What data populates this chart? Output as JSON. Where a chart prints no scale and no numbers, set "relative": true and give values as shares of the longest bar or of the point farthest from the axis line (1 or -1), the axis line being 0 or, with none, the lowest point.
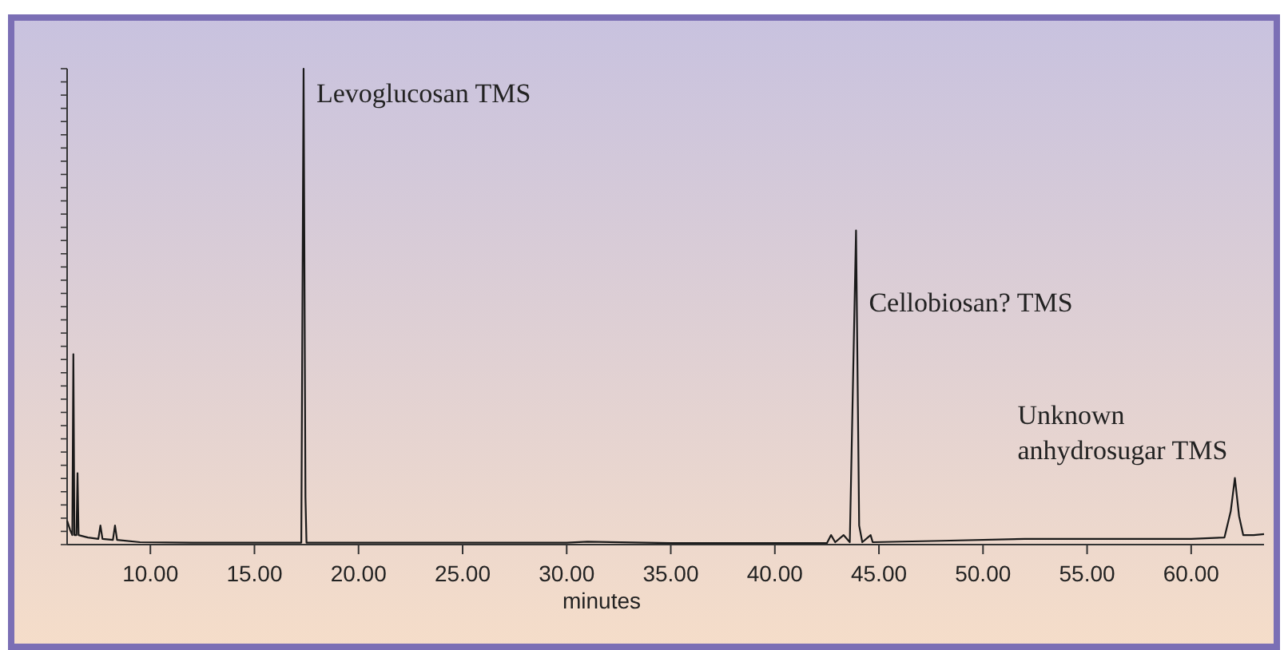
{
  "chart_data": {
    "type": "line",
    "relative": true,
    "xlabel": "minutes",
    "xlim": [
      6,
      63.5
    ],
    "xticks": [
      {
        "value": 10,
        "label": "10.00"
      },
      {
        "value": 15,
        "label": "15.00"
      },
      {
        "value": 20,
        "label": "20.00"
      },
      {
        "value": 25,
        "label": "25.00"
      },
      {
        "value": 30,
        "label": "30.00"
      },
      {
        "value": 35,
        "label": "35.00"
      },
      {
        "value": 40,
        "label": "40.00"
      },
      {
        "value": 45,
        "label": "45.00"
      },
      {
        "value": 50,
        "label": "50.00"
      },
      {
        "value": 55,
        "label": "55.00"
      },
      {
        "value": 60,
        "label": "60.00"
      }
    ],
    "x": [
      6.0,
      6.15,
      6.25,
      6.3,
      6.35,
      6.45,
      6.5,
      6.55,
      7.0,
      7.5,
      7.6,
      7.7,
      8.2,
      8.3,
      8.4,
      9.5,
      12,
      17.25,
      17.36,
      17.45,
      17.5,
      25,
      30,
      31,
      35,
      42.5,
      42.7,
      42.9,
      43.3,
      43.6,
      43.9,
      44.05,
      44.2,
      44.6,
      44.7,
      48,
      52,
      56,
      60,
      61.6,
      61.9,
      62.1,
      62.3,
      62.5,
      63,
      63.5
    ],
    "series": [
      {
        "color": "#1a1a1a",
        "values": [
          0.05,
          0.03,
          0.02,
          0.4,
          0.02,
          0.02,
          0.15,
          0.02,
          0.015,
          0.012,
          0.04,
          0.012,
          0.01,
          0.04,
          0.01,
          0.005,
          0.004,
          0.004,
          1.0,
          0.1,
          0.004,
          0.004,
          0.004,
          0.006,
          0.003,
          0.003,
          0.02,
          0.005,
          0.02,
          0.005,
          0.66,
          0.04,
          0.005,
          0.02,
          0.005,
          0.008,
          0.012,
          0.012,
          0.012,
          0.015,
          0.07,
          0.14,
          0.06,
          0.02,
          0.02,
          0.022
        ]
      }
    ],
    "annotations": [
      {
        "text": "Levoglucosan TMS",
        "x": 17.36,
        "y": 0.97
      },
      {
        "text": "Cellobiosan? TMS",
        "x": 43.9,
        "y": 0.53
      },
      {
        "text": "Unknown anhydrosugar TMS",
        "x": 62.1,
        "y": 0.14
      }
    ],
    "grid": false,
    "marker": "none",
    "line_style": "solid"
  }
}
